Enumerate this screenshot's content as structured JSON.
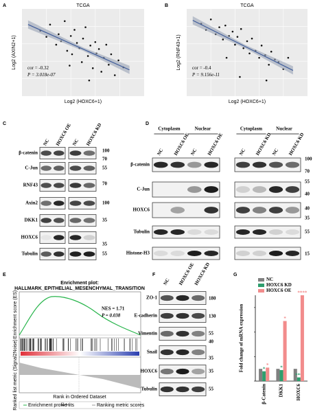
{
  "chart_data": [
    {
      "panel": "A",
      "type": "scatter",
      "title": "TCGA",
      "x_label": "Log2 (HOXC6+1)",
      "y_label": "Log2 (AXIN2+1)",
      "annotations": [
        "cor = -0.32",
        "P = 3.018e-07"
      ],
      "x": [
        1.5,
        2,
        2.3,
        2.8,
        3,
        3.2,
        3.5,
        3.7,
        4,
        4.1,
        4.3,
        4.5,
        4.7,
        4.9,
        5,
        5.2,
        5.4,
        5.6,
        5.8,
        6,
        6.1,
        6.3,
        6.5,
        6.7,
        6.9,
        7.1,
        7.3,
        7.6,
        7.9,
        8.3,
        5.5,
        3.9
      ],
      "y": [
        7.5,
        6.8,
        8.2,
        5.9,
        7.1,
        6.3,
        8.6,
        5.2,
        6.9,
        4.8,
        7.6,
        6.1,
        5.5,
        3.9,
        6.6,
        7.9,
        4.6,
        5.8,
        3.2,
        6.2,
        4.9,
        5.4,
        2.8,
        4.4,
        5.9,
        3.6,
        4.8,
        2.4,
        4.1,
        3.3,
        1.8,
        3.5
      ],
      "xlim": [
        0,
        10
      ],
      "ylim": [
        0,
        10
      ],
      "color": "#111111",
      "fit_color": "#3d5a99"
    },
    {
      "panel": "B",
      "type": "scatter",
      "title": "TCGA",
      "x_label": "Log2 (HOXC6+1)",
      "y_label": "Log2 (RNF43+1)",
      "annotations": [
        "cor = -0.4",
        "P = 9.156e-11"
      ],
      "x": [
        1.2,
        1.6,
        2,
        2.4,
        2.7,
        3,
        3.2,
        3.5,
        3.8,
        4,
        4.2,
        4.5,
        4.7,
        5,
        5.2,
        5.4,
        5.7,
        6,
        6.2,
        6.5,
        6.8,
        7,
        7.3,
        7.6,
        8,
        8.4,
        4.4,
        6.6,
        3.3
      ],
      "y": [
        8.3,
        7.6,
        8.8,
        7.1,
        7.9,
        6.5,
        8.1,
        6.9,
        7.4,
        5.9,
        6.8,
        7.7,
        5.5,
        6.3,
        4.9,
        6.6,
        5.2,
        4.4,
        5.8,
        4.7,
        3.6,
        5.1,
        4.2,
        3.9,
        3.1,
        4.4,
        2.2,
        1.8,
        4.4
      ],
      "xlim": [
        0,
        10
      ],
      "ylim": [
        0,
        10
      ],
      "color": "#111111",
      "fit_color": "#3d5a99"
    },
    {
      "panel": "G",
      "type": "bar",
      "y_label": "Fold change of mRNA expression",
      "categories": [
        "β-Catenin",
        "DKK1",
        "HOXC6"
      ],
      "series": [
        {
          "name": "NC",
          "color": "#808080",
          "values": [
            1,
            1,
            1
          ]
        },
        {
          "name": "HOXC6 KD",
          "color": "#2e9e6e",
          "values": [
            0.8,
            0.9,
            0.3
          ],
          "annotations": [
            "*",
            "*",
            "***"
          ]
        },
        {
          "name": "HOXC6 OE",
          "color": "#f28c8c",
          "values": [
            1.1,
            4.9,
            7
          ],
          "annotations": [
            "*",
            "*",
            "****"
          ]
        }
      ],
      "ylim": [
        0,
        7
      ],
      "yticks": [
        0,
        2,
        4,
        6
      ],
      "legend": "top-left"
    }
  ],
  "figure": {
    "labels": {
      "A": "A",
      "B": "B",
      "C": "C",
      "D": "D",
      "E": "E",
      "F": "F",
      "G": "G"
    },
    "C": {
      "blots": [
        [
          "NC",
          "HOXC6 OE"
        ],
        [
          "NC",
          "HOXC6 KD"
        ]
      ],
      "rows": [
        "β-catenin",
        "C-Jun",
        "RNF43",
        "Axin2",
        "DKK1",
        "HOXC6",
        "Tubulin"
      ],
      "markers": [
        "100",
        "70",
        "55",
        "70",
        "100",
        "35",
        "35",
        "55"
      ]
    },
    "D": {
      "headers": [
        "Cytoplasm",
        "Nuclear",
        "Cytoplasm",
        "Nuclear"
      ],
      "blots": [
        [
          "NC",
          "HOXC6 OE",
          "NC",
          "HOXC6 OE"
        ],
        [
          "NC",
          "HOXC6 KD",
          "NC",
          "HOXC6 KD"
        ]
      ],
      "rows": [
        "β-catenin",
        "C-Jun",
        "HOXC6",
        "Tubulin",
        "Histone-H3"
      ],
      "markers": [
        "100",
        "70",
        "55",
        "40",
        "40",
        "35",
        "55",
        "15"
      ]
    },
    "E": {
      "title": "Enrichment plot:",
      "subtitle": "HALLMARK_EPITHELIAL_MESENCHYMAL_TRANSITION",
      "stats": [
        "NES = 1.71",
        "P = 0.038"
      ],
      "es_label": "Enrichment score (ES)",
      "metric_label": "Ranked list metric (Signal2Noise)",
      "x_label": "Rank in Ordered Dataset",
      "legend": [
        "Enrichment profile",
        "Hits",
        "Ranking metric scores"
      ]
    },
    "F": {
      "lanes": [
        "NC",
        "HOXC6 OE",
        "HOXC6 KD"
      ],
      "rows": [
        "ZO-1",
        "E-cadherin",
        "Vimentin",
        "Snail",
        "HOXC6",
        "Tubulin"
      ],
      "markers": [
        "180",
        "130",
        "55",
        "40",
        "35",
        "35",
        "55"
      ]
    }
  }
}
